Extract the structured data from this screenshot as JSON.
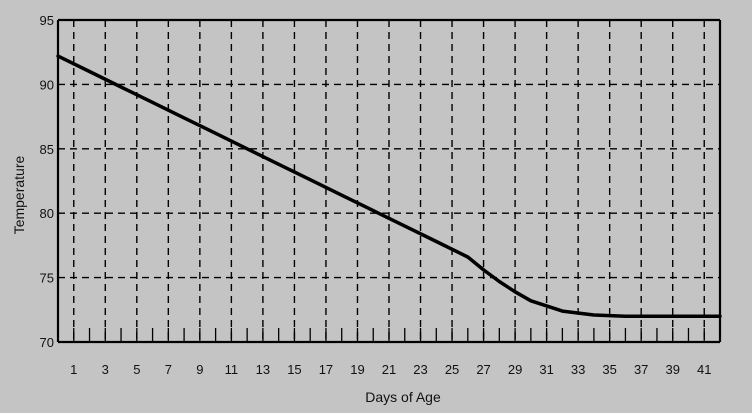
{
  "chart_data": {
    "type": "line",
    "title": "",
    "xlabel": "Days of Age",
    "ylabel": "Temperature",
    "xlim": [
      0,
      42
    ],
    "ylim": [
      70,
      95
    ],
    "x_ticks": [
      1,
      3,
      5,
      7,
      9,
      11,
      13,
      15,
      17,
      19,
      21,
      23,
      25,
      27,
      29,
      31,
      33,
      35,
      37,
      39,
      41
    ],
    "y_ticks": [
      70,
      75,
      80,
      85,
      90,
      95
    ],
    "grid": true,
    "grid_style": "dashed",
    "series": [
      {
        "x": [
          0,
          2,
          4,
          6,
          8,
          10,
          12,
          14,
          16,
          18,
          20,
          22,
          24,
          26,
          27,
          28,
          29,
          30,
          32,
          34,
          36,
          38,
          40,
          42
        ],
        "y": [
          92.2,
          91.0,
          89.8,
          88.6,
          87.4,
          86.2,
          85.0,
          83.8,
          82.6,
          81.4,
          80.2,
          79.0,
          77.8,
          76.6,
          75.6,
          74.7,
          73.9,
          73.2,
          72.4,
          72.1,
          72.0,
          72.0,
          72.0,
          72.0
        ]
      }
    ],
    "colors": {
      "background": "#c4c4c4",
      "line": "#000000",
      "grid": "#000000",
      "text": "#111111"
    }
  }
}
